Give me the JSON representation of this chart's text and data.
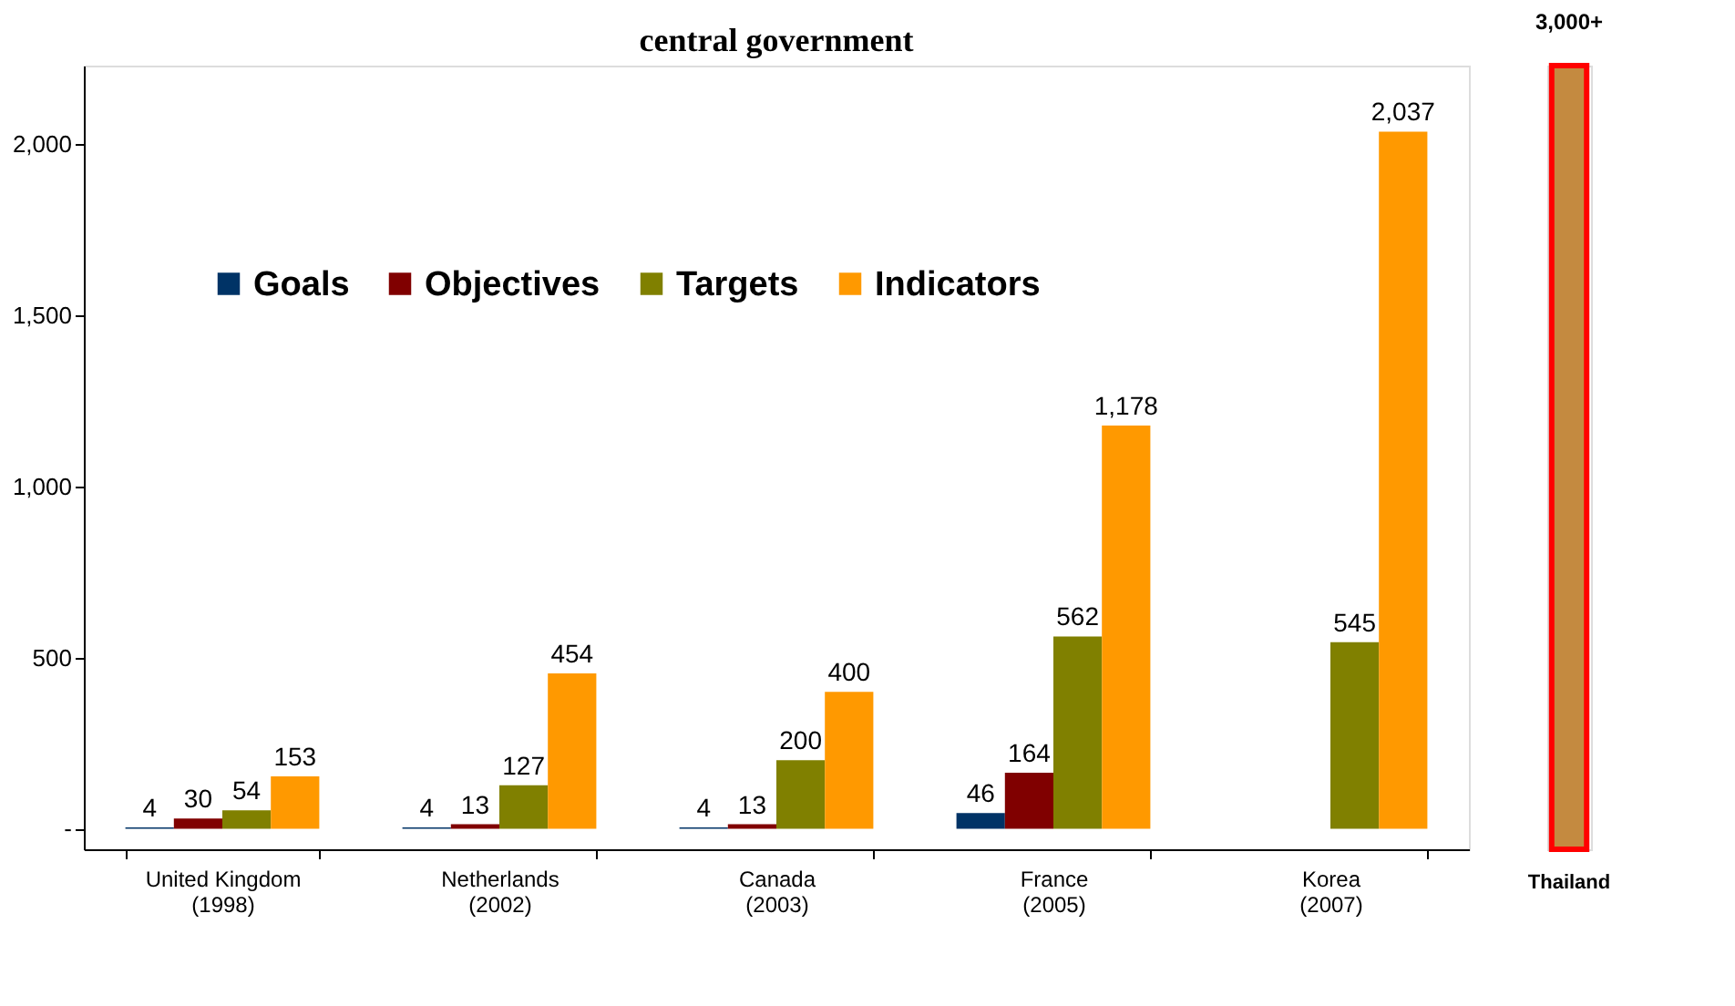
{
  "chart_data": [
    {
      "type": "bar",
      "title": "central government",
      "categories": [
        "United Kingdom\n(1998)",
        "Netherlands\n(2002)",
        "Canada\n(2003)",
        "France\n(2005)",
        "Korea\n(2007)"
      ],
      "series": [
        {
          "name": "Goals",
          "color": "#003366",
          "values": [
            4,
            4,
            4,
            46,
            null
          ],
          "value_labels": [
            "4",
            "4",
            "4",
            "46",
            null
          ]
        },
        {
          "name": "Objectives",
          "color": "#800000",
          "values": [
            30,
            13,
            13,
            164,
            null
          ],
          "value_labels": [
            "30",
            "13",
            "13",
            "164",
            null
          ]
        },
        {
          "name": "Targets",
          "color": "#808000",
          "values": [
            54,
            127,
            200,
            562,
            545
          ],
          "value_labels": [
            "54",
            "127",
            "200",
            "562",
            "545"
          ]
        },
        {
          "name": "Indicators",
          "color": "#ff9900",
          "values": [
            153,
            454,
            400,
            1178,
            2037
          ],
          "value_labels": [
            "153",
            "454",
            "400",
            "1,178",
            "2,037"
          ]
        }
      ],
      "ylim": [
        -60,
        2230
      ],
      "yticks": [
        {
          "value": 0,
          "label": "-"
        },
        500,
        {
          "value": 1000,
          "label": "1,000"
        },
        {
          "value": 1500,
          "label": "1,500"
        },
        {
          "value": 2000,
          "label": "2,000"
        }
      ],
      "legend": "top",
      "grid": false
    },
    {
      "type": "bar",
      "categories": [
        "Thailand"
      ],
      "values": [
        3000
      ],
      "value_labels": [
        "3,000+"
      ],
      "colors": [
        "#c48a40"
      ],
      "ylim": [
        0,
        3000
      ],
      "tick_labels": "x"
    }
  ]
}
